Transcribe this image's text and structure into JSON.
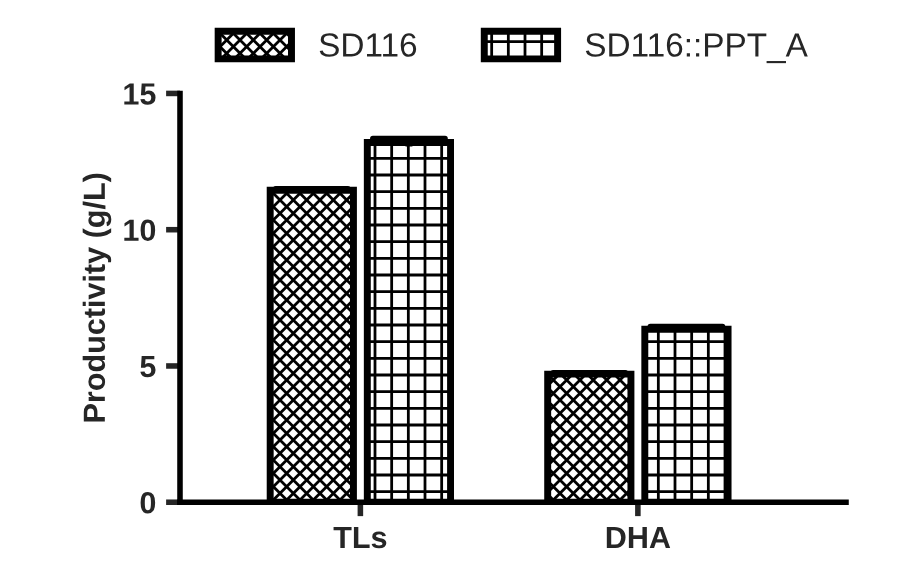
{
  "chart_data": {
    "type": "bar",
    "ylabel": "Productivity (g/L)",
    "categories": [
      "TLs",
      "DHA"
    ],
    "series": [
      {
        "name": "SD116",
        "color": "#000000",
        "values": [
          11.45,
          4.7
        ],
        "errors": [
          0.05,
          0.05
        ]
      },
      {
        "name": "SD116::PPT_A",
        "color": "#000000",
        "values": [
          13.2,
          6.35
        ],
        "errors": [
          0.15,
          0.1
        ]
      }
    ],
    "ylim": [
      0,
      15
    ],
    "yticks": [
      0,
      5,
      10,
      15
    ],
    "grid": false,
    "legend": "top"
  }
}
